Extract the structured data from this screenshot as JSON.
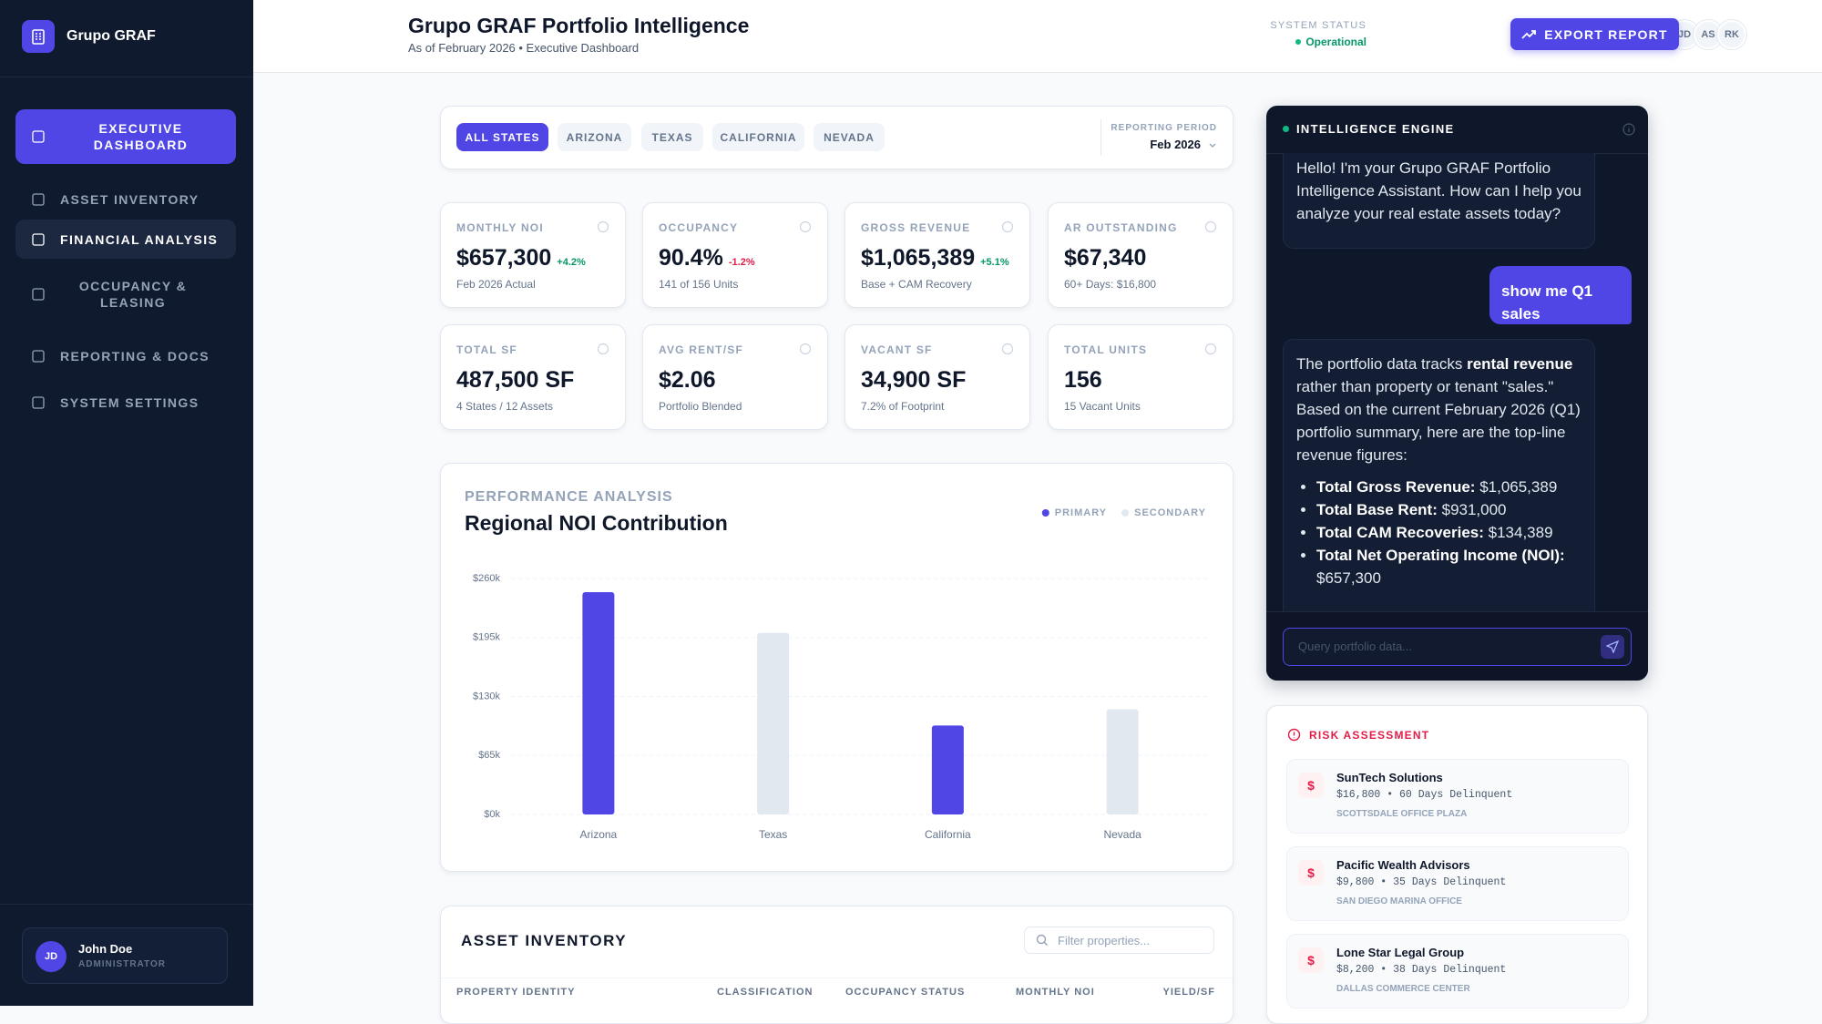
{
  "sidebar": {
    "brand": "Grupo GRAF",
    "nav": [
      "EXECUTIVE DASHBOARD",
      "ASSET INVENTORY",
      "FINANCIAL ANALYSIS",
      "OCCUPANCY & LEASING",
      "REPORTING & DOCS",
      "SYSTEM SETTINGS"
    ],
    "user": {
      "initials": "JD",
      "name": "John Doe",
      "role": "ADMINISTRATOR"
    }
  },
  "header": {
    "title": "Grupo GRAF Portfolio Intelligence",
    "subtitle": "As of February 2026 • Executive Dashboard",
    "status_label": "SYSTEM STATUS",
    "status": "Operational",
    "avatars": [
      "JD",
      "AS",
      "RK"
    ],
    "export": "EXPORT REPORT"
  },
  "filters": {
    "states": [
      "ALL STATES",
      "ARIZONA",
      "TEXAS",
      "CALIFORNIA",
      "NEVADA"
    ],
    "period_label": "REPORTING PERIOD",
    "period": "Feb 2026"
  },
  "kpis": [
    {
      "label": "MONTHLY NOI",
      "value": "$657,300",
      "change": "+4.2%",
      "note": "Feb 2026 Actual"
    },
    {
      "label": "OCCUPANCY",
      "value": "90.4%",
      "change": "-1.2%",
      "note": "141 of 156 Units"
    },
    {
      "label": "GROSS REVENUE",
      "value": "$1,065,389",
      "change": "+5.1%",
      "note": "Base + CAM Recovery"
    },
    {
      "label": "AR OUTSTANDING",
      "value": "$67,340",
      "note": "60+ Days: $16,800"
    },
    {
      "label": "TOTAL SF",
      "value": "487,500 SF",
      "note": "4 States / 12 Assets"
    },
    {
      "label": "AVG RENT/SF",
      "value": "$2.06",
      "note": "Portfolio Blended"
    },
    {
      "label": "VACANT SF",
      "value": "34,900 SF",
      "note": "7.2% of Footprint"
    },
    {
      "label": "TOTAL UNITS",
      "value": "156",
      "note": "15 Vacant Units"
    }
  ],
  "chart_data": {
    "type": "bar",
    "subtitle": "PERFORMANCE ANALYSIS",
    "title": "Regional NOI Contribution",
    "categories": [
      "Arizona",
      "Texas",
      "California",
      "Nevada"
    ],
    "series": [
      {
        "name": "PRIMARY",
        "color": "#4f46e5",
        "values": [
          245000,
          null,
          98000,
          null
        ]
      },
      {
        "name": "SECONDARY",
        "color": "#e2e8f0",
        "values": [
          null,
          200000,
          null,
          116000
        ]
      }
    ],
    "ylim": [
      0,
      260000
    ],
    "yticks": [
      {
        "value": 0,
        "label": "$0k"
      },
      {
        "value": 65000,
        "label": "$65k"
      },
      {
        "value": 130000,
        "label": "$130k"
      },
      {
        "value": 195000,
        "label": "$195k"
      },
      {
        "value": 260000,
        "label": "$260k"
      }
    ],
    "grid": true,
    "legend": "top-right"
  },
  "inventory": {
    "title": "ASSET INVENTORY",
    "search_placeholder": "Filter properties...",
    "columns": [
      "PROPERTY IDENTITY",
      "CLASSIFICATION",
      "OCCUPANCY STATUS",
      "MONTHLY NOI",
      "YIELD/SF"
    ]
  },
  "chat": {
    "title": "INTELLIGENCE ENGINE",
    "greeting": "Hello! I'm your Grupo GRAF Portfolio Intelligence Assistant. How can I help you analyze your real estate assets today?",
    "user_message": "show me Q1 sales",
    "reply": {
      "intro": [
        "The portfolio data tracks ",
        "rental revenue",
        " rather than property or tenant \"sales.\" Based on the current February 2026 (Q1) portfolio summary, here are the top-line revenue figures:"
      ],
      "bullets": [
        {
          "label": "Total Gross Revenue:",
          "value": "$1,065,389"
        },
        {
          "label": "Total Base Rent:",
          "value": "$931,000"
        },
        {
          "label": "Total CAM Recoveries:",
          "value": "$134,389"
        },
        {
          "label": "Total Net Operating Income (NOI):",
          "value": "$657,300"
        }
      ]
    },
    "input_placeholder": "Query portfolio data..."
  },
  "risk": {
    "title": "RISK ASSESSMENT",
    "items": [
      {
        "name": "SunTech Solutions",
        "detail": "$16,800 • 60 Days Delinquent",
        "property": "SCOTTSDALE OFFICE PLAZA"
      },
      {
        "name": "Pacific Wealth Advisors",
        "detail": "$9,800 • 35 Days Delinquent",
        "property": "SAN DIEGO MARINA OFFICE"
      },
      {
        "name": "Lone Star Legal Group",
        "detail": "$8,200 • 38 Days Delinquent",
        "property": "DALLAS COMMERCE CENTER"
      }
    ]
  }
}
